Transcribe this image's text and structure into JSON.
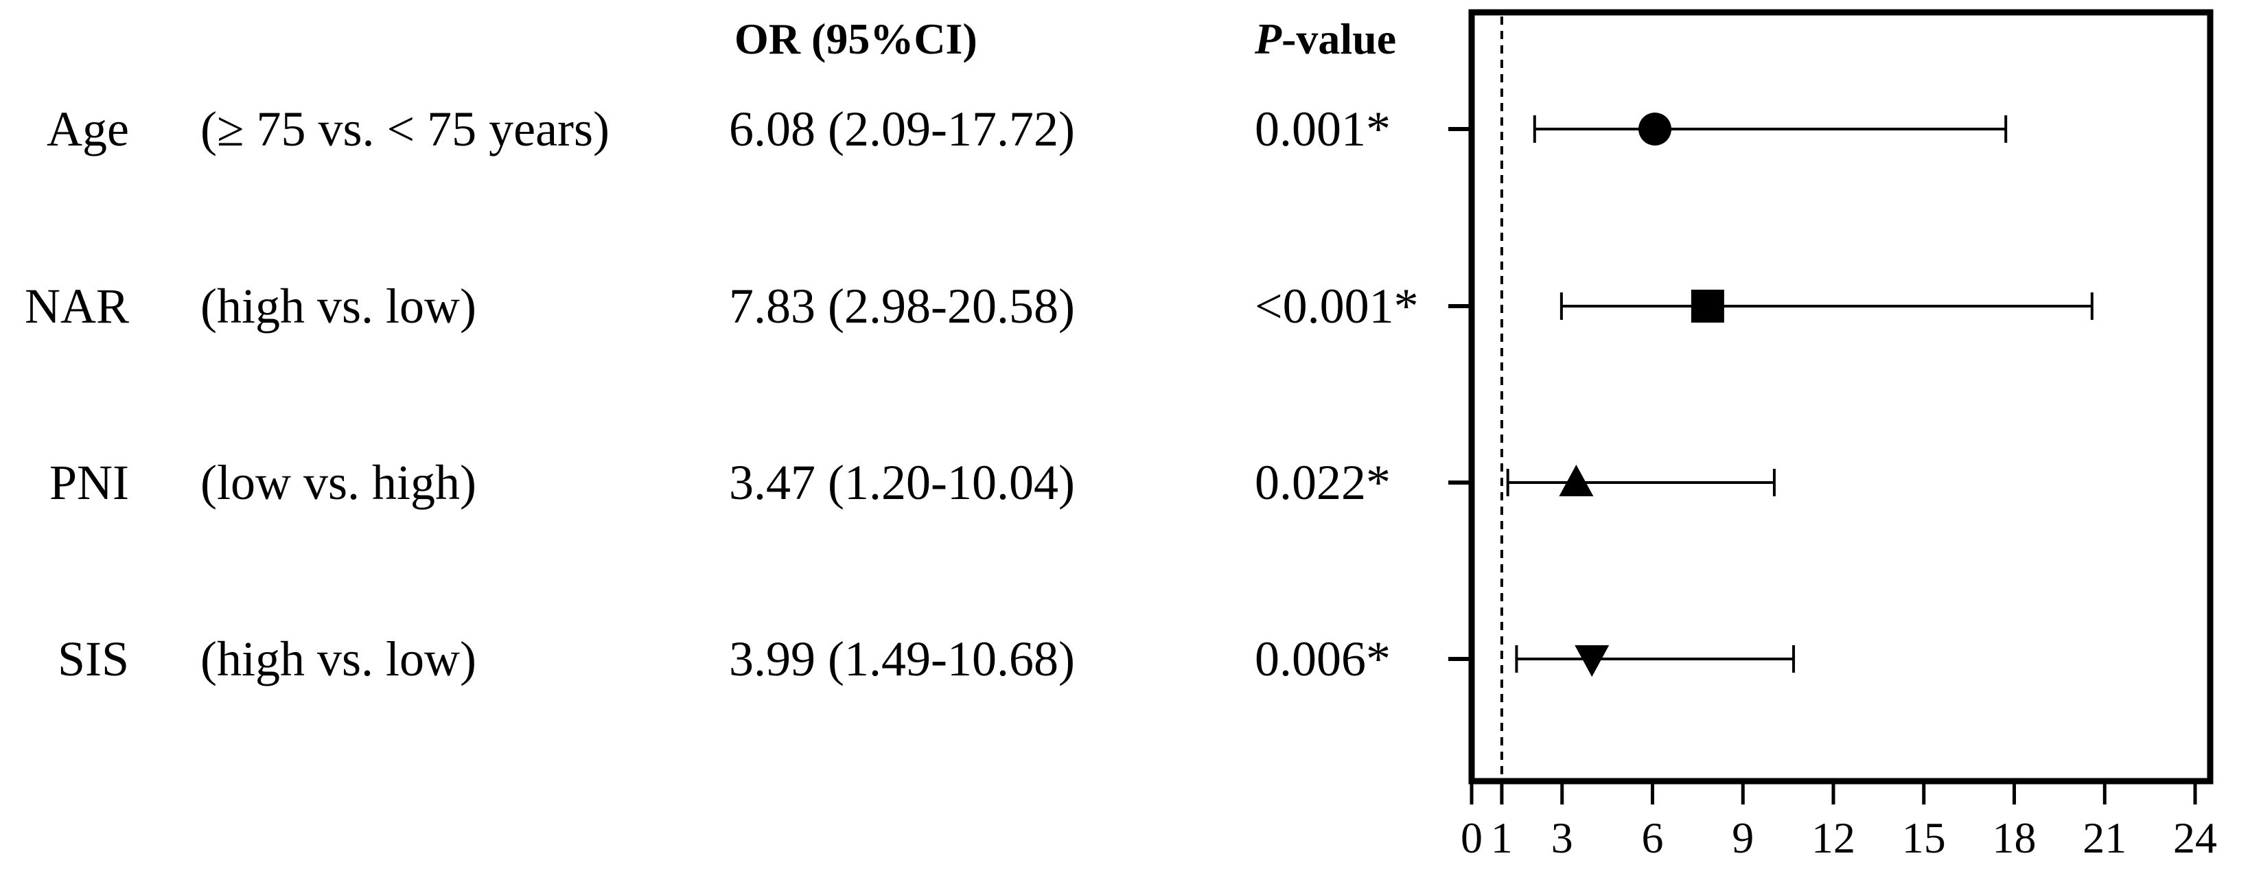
{
  "headers": {
    "or": "OR (95%CI)",
    "p_italic": "P",
    "p_rest": "-value"
  },
  "rows": [
    {
      "label": "Age",
      "comparison": "(≥ 75 vs. < 75 years)",
      "or_text": "6.08 (2.09-17.72)",
      "p_text": "0.001*",
      "marker": "circle"
    },
    {
      "label": "NAR",
      "comparison": "(high vs. low)",
      "or_text": "7.83 (2.98-20.58)",
      "p_text": "<0.001*",
      "marker": "square"
    },
    {
      "label": "PNI",
      "comparison": "(low vs. high)",
      "or_text": "3.47 (1.20-10.04)",
      "p_text": "0.022*",
      "marker": "triangle-up"
    },
    {
      "label": "SIS",
      "comparison": "(high vs. low)",
      "or_text": "3.99 (1.49-10.68)",
      "p_text": "0.006*",
      "marker": "triangle-down"
    }
  ],
  "chart_data": {
    "type": "forest",
    "x_ticks": [
      0,
      1,
      3,
      6,
      9,
      12,
      15,
      18,
      21,
      24
    ],
    "x_tick_labels": [
      "0",
      "1",
      "3",
      "6",
      "9",
      "12",
      "15",
      "18",
      "21",
      "24"
    ],
    "xlim": [
      0,
      24.5
    ],
    "reference_line": 1,
    "reference_style": "dashed",
    "series": [
      {
        "name": "Age",
        "or": 6.08,
        "ci_low": 2.09,
        "ci_high": 17.72,
        "marker": "circle"
      },
      {
        "name": "NAR",
        "or": 7.83,
        "ci_low": 2.98,
        "ci_high": 20.58,
        "marker": "square"
      },
      {
        "name": "PNI",
        "or": 3.47,
        "ci_low": 1.2,
        "ci_high": 10.04,
        "marker": "triangle-up"
      },
      {
        "name": "SIS",
        "or": 3.99,
        "ci_low": 1.49,
        "ci_high": 10.68,
        "marker": "triangle-down"
      }
    ],
    "colors": {
      "ink": "#000000",
      "background": "#ffffff"
    }
  }
}
